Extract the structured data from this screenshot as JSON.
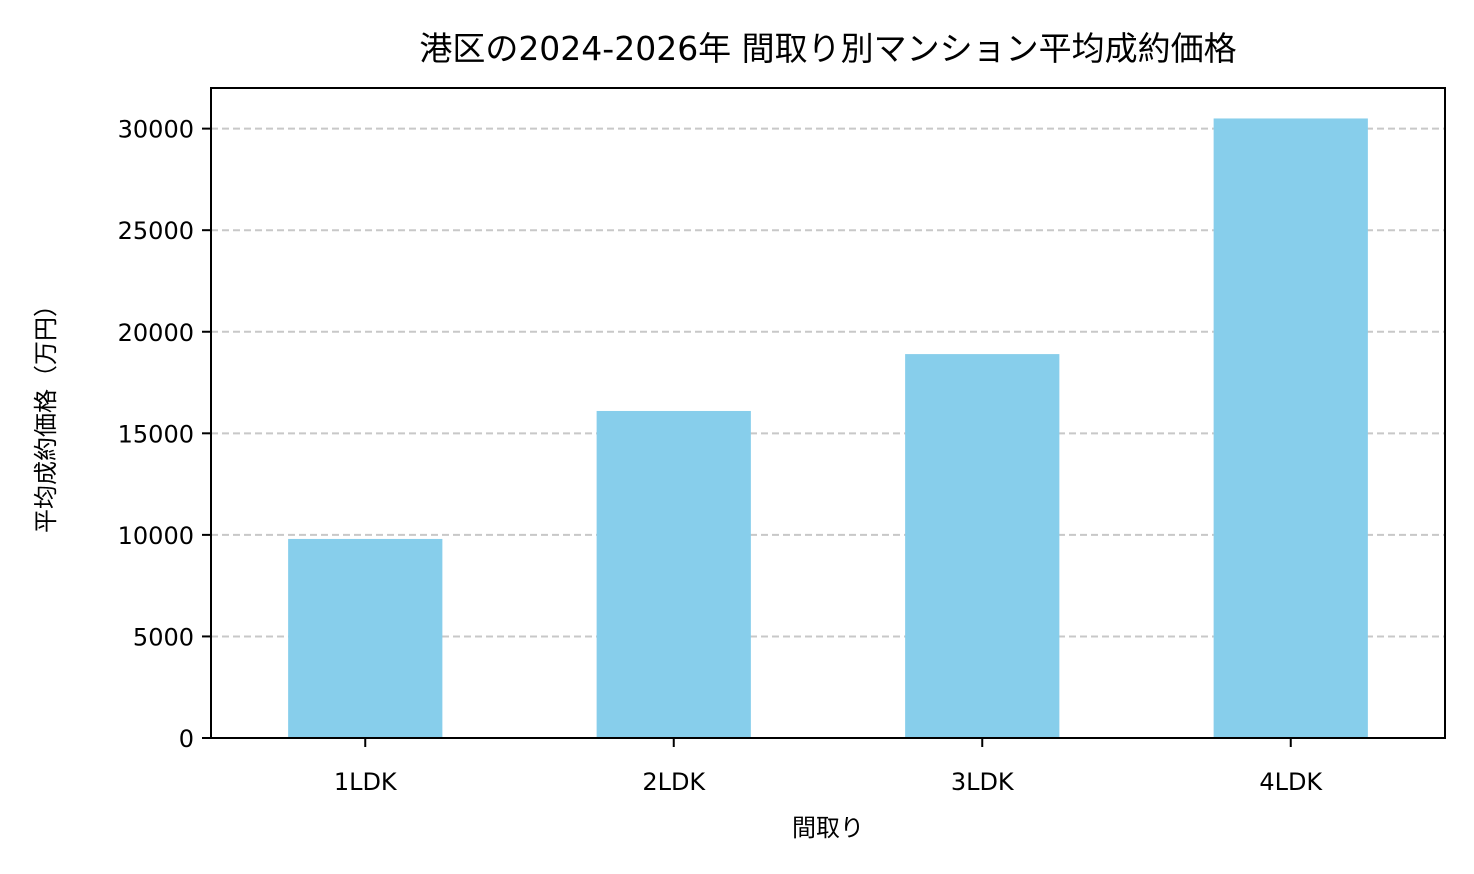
{
  "chart_data": {
    "type": "bar",
    "title": "港区の2024-2026年 間取り別マンション平均成約価格",
    "xlabel": "間取り",
    "ylabel": "平均成約価格（万円）",
    "categories": [
      "1LDK",
      "2LDK",
      "3LDK",
      "4LDK"
    ],
    "values": [
      9800,
      16100,
      18900,
      30500
    ],
    "ylim": [
      0,
      32000
    ],
    "yticks": [
      0,
      5000,
      10000,
      15000,
      20000,
      25000,
      30000
    ],
    "grid": "y-dashed",
    "legend": "none",
    "bar_color": "#87ceeb"
  }
}
